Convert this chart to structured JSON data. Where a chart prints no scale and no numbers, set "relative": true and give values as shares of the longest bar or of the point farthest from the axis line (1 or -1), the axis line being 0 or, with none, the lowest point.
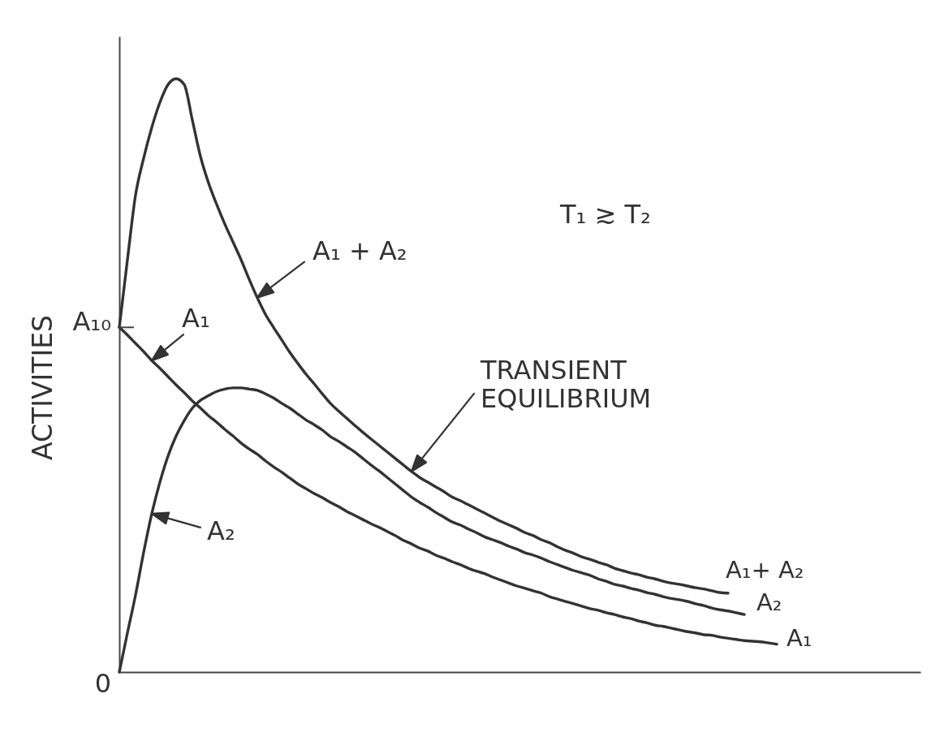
{
  "chart_data": {
    "type": "line",
    "relative": true,
    "ylabel": "ACTIVITIES",
    "categories": [
      null,
      null,
      null,
      null,
      null,
      null,
      null,
      null,
      null,
      null,
      null,
      null,
      null,
      null,
      null,
      null,
      null,
      null,
      null,
      null,
      null,
      null,
      null,
      null,
      null,
      null,
      null,
      null,
      null,
      null,
      null,
      null,
      null,
      null,
      null,
      null,
      null,
      null,
      null,
      null,
      null,
      null,
      null,
      null,
      null,
      null,
      null,
      null,
      null,
      null,
      null,
      null,
      null,
      null,
      null,
      null,
      null,
      null,
      null,
      null,
      null,
      null,
      null,
      null,
      null,
      null,
      null,
      null,
      null,
      null,
      null,
      null,
      null,
      null,
      null,
      null,
      null,
      null,
      null,
      null,
      null,
      null,
      null,
      null,
      null,
      null,
      null,
      null,
      null,
      null,
      null,
      null,
      null,
      null,
      null,
      null,
      null,
      null,
      null
    ],
    "series": [
      {
        "name": "A₁+ A₂",
        "color": "#333333",
        "values": [
          0.581,
          0.695,
          0.804,
          0.866,
          0.918,
          0.96,
          0.99,
          1.0,
          0.99,
          0.93,
          0.869,
          0.824,
          0.788,
          0.755,
          0.725,
          0.695,
          0.662,
          0.631,
          0.603,
          0.581,
          0.56,
          0.539,
          0.52,
          0.502,
          0.486,
          0.469,
          0.453,
          0.44,
          0.428,
          0.416,
          0.404,
          0.393,
          0.382,
          0.371,
          0.36,
          0.349,
          0.338,
          0.328,
          0.32,
          0.312,
          0.304,
          0.295,
          0.289,
          0.282,
          0.275,
          0.268,
          0.261,
          0.254,
          0.248,
          0.242,
          0.235,
          0.23,
          0.223,
          0.218,
          0.211,
          0.205,
          0.2,
          0.194,
          0.19,
          0.185,
          0.181,
          0.175,
          0.171,
          0.167,
          0.164,
          0.16,
          0.157,
          0.153,
          0.15,
          0.148,
          0.145,
          0.142,
          0.14,
          0.137,
          0.134,
          0.133,
          null,
          null,
          null,
          null,
          null,
          null,
          null,
          null,
          null,
          null,
          null,
          null,
          null,
          null,
          null,
          null,
          null,
          null,
          null,
          null,
          null,
          null,
          null
        ]
      },
      {
        "name": "A₂",
        "color": "#333333",
        "values": [
          0.0,
          0.066,
          0.13,
          0.202,
          0.267,
          0.32,
          0.364,
          0.398,
          0.424,
          0.445,
          0.458,
          0.466,
          0.473,
          0.477,
          0.479,
          0.479,
          0.477,
          0.475,
          0.469,
          0.462,
          0.453,
          0.445,
          0.435,
          0.425,
          0.417,
          0.408,
          0.397,
          0.389,
          0.38,
          0.371,
          0.36,
          0.349,
          0.339,
          0.328,
          0.317,
          0.306,
          0.295,
          0.286,
          0.278,
          0.269,
          0.261,
          0.253,
          0.248,
          0.241,
          0.235,
          0.228,
          0.223,
          0.218,
          0.212,
          0.207,
          0.201,
          0.197,
          0.192,
          0.186,
          0.181,
          0.176,
          0.171,
          0.167,
          0.163,
          0.157,
          0.153,
          0.148,
          0.145,
          0.141,
          0.138,
          0.134,
          0.131,
          0.127,
          0.124,
          0.122,
          0.119,
          0.115,
          0.112,
          0.108,
          0.105,
          0.103,
          0.1,
          0.097,
          null,
          null,
          null,
          null,
          null,
          null,
          null,
          null,
          null,
          null,
          null,
          null,
          null,
          null,
          null,
          null,
          null,
          null,
          null,
          null,
          null
        ]
      },
      {
        "name": "A₁",
        "color": "#333333",
        "values": [
          0.581,
          0.568,
          0.554,
          0.54,
          0.525,
          0.512,
          0.498,
          0.484,
          0.471,
          0.457,
          0.445,
          0.432,
          0.421,
          0.409,
          0.398,
          0.386,
          0.376,
          0.367,
          0.356,
          0.346,
          0.337,
          0.327,
          0.317,
          0.309,
          0.301,
          0.294,
          0.286,
          0.279,
          0.271,
          0.264,
          0.257,
          0.25,
          0.244,
          0.237,
          0.23,
          0.222,
          0.216,
          0.209,
          0.204,
          0.197,
          0.192,
          0.186,
          0.181,
          0.175,
          0.17,
          0.166,
          0.16,
          0.155,
          0.15,
          0.145,
          0.141,
          0.137,
          0.133,
          0.127,
          0.123,
          0.119,
          0.115,
          0.111,
          0.107,
          0.104,
          0.1,
          0.097,
          0.093,
          0.09,
          0.086,
          0.083,
          0.079,
          0.077,
          0.074,
          0.071,
          0.068,
          0.066,
          0.063,
          0.062,
          0.059,
          0.057,
          0.055,
          0.053,
          0.052,
          0.051,
          0.049,
          0.047,
          null,
          null,
          null,
          null,
          null,
          null,
          null,
          null,
          null,
          null,
          null,
          null,
          null,
          null,
          null,
          null,
          null
        ]
      }
    ],
    "annotations": [
      "T₁ ≳ T₂",
      "A₁ + A₂",
      "A₁",
      "TRANSIENT\nEQUILIBRIUM",
      "A₂",
      "A₁₀",
      "0"
    ]
  }
}
